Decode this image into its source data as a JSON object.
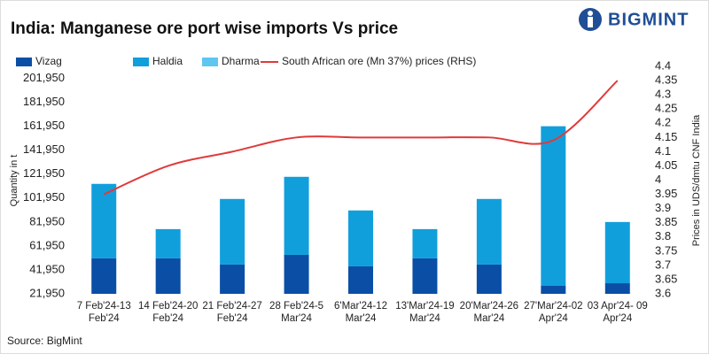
{
  "chart_data": {
    "type": "bar_line",
    "title": "India: Manganese ore port wise imports Vs price",
    "brand": "BIGMINT",
    "source": "Source: BigMint",
    "y_label": "Quantity in t",
    "y2_label": "Prices in UDS/dmtu CNF India",
    "categories": [
      [
        "7 Feb'24-13",
        "Feb'24"
      ],
      [
        "14 Feb'24-20",
        "Feb'24"
      ],
      [
        "21 Feb'24-27",
        "Feb'24"
      ],
      [
        "28 Feb'24-5",
        "Mar'24"
      ],
      [
        "6'Mar'24-12",
        "Mar'24"
      ],
      [
        "13'Mar'24-19",
        "Mar'24"
      ],
      [
        "20'Mar'24-26",
        "Mar'24"
      ],
      [
        "27'Mar'24-02",
        "Apr'24"
      ],
      [
        "03 Apr'24- 09",
        "Apr'24"
      ]
    ],
    "series": [
      {
        "name": "Vizag",
        "color": "#0a4ea6",
        "kind": "bar",
        "values": [
          51600,
          51600,
          46400,
          54500,
          44900,
          51600,
          46400,
          28600,
          30800
        ]
      },
      {
        "name": "Haldia",
        "color": "#119fdc",
        "kind": "bar",
        "values": [
          62200,
          24400,
          54800,
          65200,
          46700,
          24400,
          54800,
          133350,
          51150
        ]
      },
      {
        "name": "Dharma",
        "color": "#5ec6f0",
        "kind": "bar",
        "values": [
          0,
          0,
          0,
          0,
          0,
          0,
          0,
          0,
          0
        ]
      },
      {
        "name": "South African ore (Mn 37%) prices (RHS)",
        "color": "#e03a3a",
        "kind": "line",
        "axis": "y2",
        "values": [
          3.95,
          4.05,
          4.1,
          4.15,
          4.15,
          4.15,
          4.15,
          4.14,
          4.35
        ]
      }
    ],
    "ylim": [
      21950,
      211950
    ],
    "yticks": [
      {
        "value": 21950,
        "label": "21,950"
      },
      {
        "value": 41950,
        "label": "41,950"
      },
      {
        "value": 61950,
        "label": "61,950"
      },
      {
        "value": 81950,
        "label": "81,950"
      },
      {
        "value": 101950,
        "label": "101,950"
      },
      {
        "value": 121950,
        "label": "121,950"
      },
      {
        "value": 141950,
        "label": "141,950"
      },
      {
        "value": 161950,
        "label": "161,950"
      },
      {
        "value": 181950,
        "label": "181,950"
      },
      {
        "value": 201950,
        "label": "201,950"
      }
    ],
    "y2lim": [
      3.6,
      4.4
    ],
    "y2ticks": [
      3.6,
      3.65,
      3.7,
      3.75,
      3.8,
      3.85,
      3.9,
      3.95,
      4,
      4.05,
      4.1,
      4.15,
      4.2,
      4.25,
      4.3,
      4.35,
      4.4
    ],
    "legend": "top"
  }
}
